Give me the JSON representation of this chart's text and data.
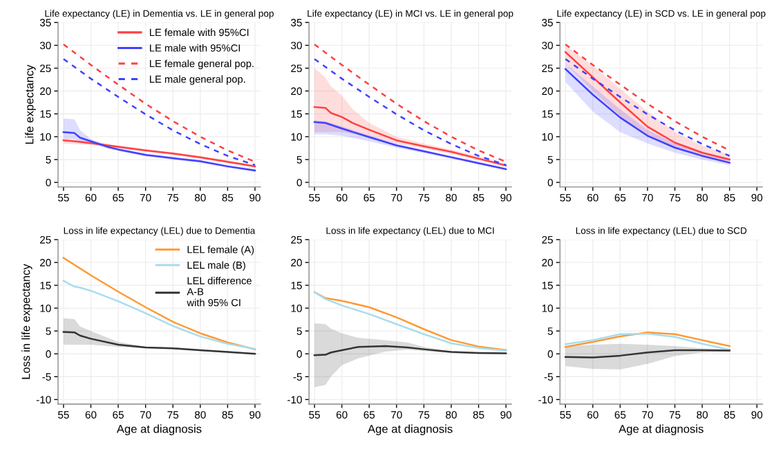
{
  "chart_data": [
    {
      "type": "line",
      "title": "Life expectancy (LE) in Dementia vs. LE in general pop",
      "ylabel": "Life expectancy",
      "xlim": [
        54,
        91
      ],
      "ylim": [
        -1,
        35
      ],
      "xticks": [
        55,
        60,
        65,
        70,
        75,
        80,
        85,
        90
      ],
      "yticks": [
        0,
        5,
        10,
        15,
        20,
        25,
        30,
        35
      ],
      "grid": true,
      "legend": "top right",
      "series": [
        {
          "name": "LE female with 95%CI",
          "color": "#ff4040",
          "line_style": "solid",
          "x": [
            55,
            57,
            60,
            65,
            70,
            75,
            80,
            85,
            90
          ],
          "values": [
            9.2,
            9.0,
            8.6,
            7.8,
            7.0,
            6.3,
            5.5,
            4.5,
            3.5
          ],
          "lower": [
            8.5,
            8.4,
            8.2,
            7.5,
            6.7,
            6.0,
            5.2,
            4.2,
            3.2
          ],
          "upper": [
            9.6,
            9.4,
            9.0,
            8.1,
            7.3,
            6.6,
            5.8,
            4.8,
            3.8
          ]
        },
        {
          "name": "LE male with 95%CI",
          "color": "#4040ff",
          "line_style": "solid",
          "x": [
            55,
            57,
            58,
            60,
            63,
            65,
            70,
            75,
            80,
            85,
            90
          ],
          "values": [
            11.0,
            10.8,
            9.8,
            9.0,
            7.8,
            7.2,
            6.0,
            5.3,
            4.6,
            3.5,
            2.6
          ],
          "lower": [
            9.5,
            9.5,
            9.0,
            8.5,
            7.4,
            6.9,
            5.7,
            5.0,
            4.3,
            3.2,
            2.3
          ],
          "upper": [
            14.0,
            13.8,
            11.5,
            9.5,
            8.2,
            7.6,
            6.3,
            5.6,
            4.9,
            3.8,
            2.9
          ]
        },
        {
          "name": "LE female general pop.",
          "color": "#ff4040",
          "line_style": "dashed",
          "x": [
            55,
            60,
            65,
            70,
            75,
            80,
            85,
            90
          ],
          "values": [
            30.2,
            25.7,
            21.4,
            17.2,
            13.4,
            10.0,
            7.0,
            4.5
          ]
        },
        {
          "name": "LE male general pop.",
          "color": "#4040ff",
          "line_style": "dashed",
          "x": [
            55,
            60,
            65,
            70,
            75,
            80,
            85,
            90
          ],
          "values": [
            27.0,
            22.7,
            18.7,
            14.9,
            11.4,
            8.4,
            5.8,
            3.8
          ]
        }
      ]
    },
    {
      "type": "line",
      "title": "Life expectancy (LE) in MCI vs. LE in general pop",
      "xlim": [
        54,
        91
      ],
      "ylim": [
        -1,
        35
      ],
      "xticks": [
        55,
        60,
        65,
        70,
        75,
        80,
        85,
        90
      ],
      "yticks": [
        0,
        5,
        10,
        15,
        20,
        25,
        30,
        35
      ],
      "grid": true,
      "series": [
        {
          "color": "#ff4040",
          "line_style": "solid",
          "x": [
            55,
            57,
            58,
            60,
            62,
            65,
            70,
            75,
            80,
            85,
            90
          ],
          "values": [
            16.5,
            16.3,
            15.2,
            14.3,
            13.0,
            11.5,
            9.2,
            7.9,
            6.7,
            5.2,
            3.7
          ],
          "lower": [
            11.0,
            11.0,
            11.0,
            11.0,
            10.6,
            10.0,
            8.5,
            7.4,
            6.2,
            4.8,
            3.4
          ],
          "upper": [
            25.0,
            23.0,
            21.0,
            19.0,
            16.0,
            13.0,
            10.0,
            8.5,
            7.2,
            5.7,
            4.0
          ]
        },
        {
          "color": "#4040ff",
          "line_style": "solid",
          "x": [
            55,
            57,
            60,
            65,
            70,
            75,
            80,
            85,
            90
          ],
          "values": [
            13.2,
            13.0,
            11.8,
            9.9,
            8.1,
            6.8,
            5.5,
            4.2,
            2.9
          ],
          "lower": [
            10.5,
            10.5,
            10.2,
            9.0,
            7.6,
            6.4,
            5.2,
            3.9,
            2.6
          ],
          "upper": [
            13.6,
            13.4,
            12.3,
            10.3,
            8.5,
            7.1,
            5.8,
            4.5,
            3.2
          ]
        },
        {
          "color": "#ff4040",
          "line_style": "dashed",
          "x": [
            55,
            60,
            65,
            70,
            75,
            80,
            85,
            90
          ],
          "values": [
            30.2,
            25.7,
            21.4,
            17.2,
            13.4,
            10.0,
            7.0,
            4.5
          ]
        },
        {
          "color": "#4040ff",
          "line_style": "dashed",
          "x": [
            55,
            60,
            65,
            70,
            75,
            80,
            85,
            90
          ],
          "values": [
            27.0,
            22.7,
            18.7,
            14.9,
            11.4,
            8.4,
            5.8,
            3.8
          ]
        }
      ]
    },
    {
      "type": "line",
      "title": "Life expectancy (LE) in SCD vs. LE in general pop",
      "xlim": [
        54,
        91
      ],
      "ylim": [
        -1,
        35
      ],
      "xticks": [
        55,
        60,
        65,
        70,
        75,
        80,
        85,
        90
      ],
      "yticks": [
        0,
        5,
        10,
        15,
        20,
        25,
        30,
        35
      ],
      "grid": true,
      "series": [
        {
          "color": "#ff4040",
          "line_style": "solid",
          "x": [
            55,
            60,
            65,
            70,
            75,
            80,
            85
          ],
          "values": [
            28.5,
            23.0,
            17.5,
            12.2,
            8.7,
            6.5,
            5.0
          ],
          "lower": [
            26.0,
            20.0,
            14.5,
            10.0,
            7.5,
            5.8,
            4.5
          ],
          "upper": [
            30.0,
            25.5,
            20.5,
            15.5,
            11.0,
            8.0,
            6.0
          ]
        },
        {
          "color": "#4040ff",
          "line_style": "solid",
          "x": [
            55,
            60,
            65,
            70,
            75,
            80,
            85
          ],
          "values": [
            24.8,
            19.2,
            14.2,
            10.2,
            7.6,
            5.8,
            4.3
          ],
          "lower": [
            22.0,
            15.5,
            11.0,
            8.5,
            6.5,
            5.0,
            3.8
          ],
          "upper": [
            26.0,
            21.0,
            16.0,
            11.5,
            8.5,
            6.5,
            4.8
          ]
        },
        {
          "color": "#ff4040",
          "line_style": "dashed",
          "x": [
            55,
            60,
            65,
            70,
            75,
            80,
            85
          ],
          "values": [
            30.2,
            25.7,
            21.4,
            17.2,
            13.4,
            10.0,
            7.0
          ]
        },
        {
          "color": "#4040ff",
          "line_style": "dashed",
          "x": [
            55,
            60,
            65,
            70,
            75,
            80,
            85
          ],
          "values": [
            27.0,
            22.7,
            18.7,
            14.9,
            11.4,
            8.4,
            5.8
          ]
        }
      ]
    },
    {
      "type": "line",
      "title": "Loss in life expectancy (LEL) due to Dementia",
      "xlabel": "Age at diagnosis",
      "ylabel": "Loss in life expectancy",
      "xlim": [
        54,
        91
      ],
      "ylim": [
        -11,
        25
      ],
      "xticks": [
        55,
        60,
        65,
        70,
        75,
        80,
        85,
        90
      ],
      "yticks": [
        -10,
        -5,
        0,
        5,
        10,
        15,
        20,
        25
      ],
      "grid": true,
      "legend": "top right",
      "series": [
        {
          "name": "LEL female (A)",
          "color": "#ff9933",
          "line_style": "solid",
          "x": [
            55,
            60,
            65,
            70,
            75,
            80,
            85,
            90
          ],
          "values": [
            21.0,
            17.2,
            13.6,
            10.2,
            7.0,
            4.5,
            2.5,
            1.0
          ]
        },
        {
          "name": "LEL male (B)",
          "color": "#a8dcee",
          "line_style": "solid",
          "x": [
            55,
            57,
            58,
            60,
            65,
            70,
            75,
            80,
            85,
            90
          ],
          "values": [
            16.0,
            14.7,
            14.5,
            13.8,
            11.5,
            8.9,
            6.1,
            3.8,
            2.2,
            1.1
          ]
        },
        {
          "name": "LEL difference\nA-B\nwith 95% CI",
          "color": "#333333",
          "line_style": "solid",
          "x": [
            55,
            57,
            58,
            60,
            65,
            70,
            75,
            80,
            85,
            90
          ],
          "values": [
            4.8,
            4.7,
            4.0,
            3.3,
            2.0,
            1.4,
            1.2,
            0.8,
            0.4,
            0.0
          ],
          "lower": [
            2.0,
            2.0,
            2.0,
            2.0,
            1.5,
            1.2,
            1.0,
            0.6,
            0.2,
            0.0
          ],
          "upper": [
            7.8,
            7.6,
            6.0,
            5.0,
            2.6,
            1.6,
            1.4,
            1.0,
            0.6,
            0.1
          ]
        }
      ]
    },
    {
      "type": "line",
      "title": "Loss in life expectancy (LEL) due to MCI",
      "xlabel": "Age at diagnosis",
      "xlim": [
        54,
        91
      ],
      "ylim": [
        -11,
        25
      ],
      "xticks": [
        55,
        60,
        65,
        70,
        75,
        80,
        85,
        90
      ],
      "yticks": [
        -10,
        -5,
        0,
        5,
        10,
        15,
        20,
        25
      ],
      "grid": true,
      "series": [
        {
          "color": "#ff9933",
          "line_style": "solid",
          "x": [
            55,
            57,
            60,
            65,
            70,
            75,
            80,
            85,
            90
          ],
          "values": [
            13.5,
            12.2,
            11.6,
            10.2,
            8.0,
            5.4,
            3.0,
            1.6,
            0.8
          ]
        },
        {
          "color": "#a8dcee",
          "line_style": "solid",
          "x": [
            55,
            57,
            60,
            65,
            70,
            75,
            80,
            85,
            90
          ],
          "values": [
            13.5,
            12.0,
            10.6,
            8.7,
            6.5,
            4.3,
            2.3,
            1.3,
            0.7
          ]
        },
        {
          "color": "#333333",
          "line_style": "solid",
          "x": [
            55,
            57,
            58,
            60,
            63,
            68,
            72,
            75,
            80,
            85,
            90
          ],
          "values": [
            -0.3,
            -0.2,
            0.3,
            0.8,
            1.5,
            1.7,
            1.4,
            1.0,
            0.4,
            0.2,
            0.1
          ],
          "lower": [
            -7.3,
            -6.8,
            -5.0,
            -2.5,
            -1.0,
            0.5,
            0.9,
            0.6,
            0.2,
            0.0,
            0.0
          ],
          "upper": [
            6.7,
            6.5,
            5.5,
            4.5,
            3.5,
            3.0,
            2.5,
            1.5,
            0.6,
            0.3,
            0.2
          ]
        }
      ]
    },
    {
      "type": "line",
      "title": "Loss in life expectancy (LEL) due to SCD",
      "xlabel": "Age at diagnosis",
      "xlim": [
        54,
        91
      ],
      "ylim": [
        -11,
        25
      ],
      "xticks": [
        55,
        60,
        65,
        70,
        75,
        80,
        85,
        90
      ],
      "yticks": [
        -10,
        -5,
        0,
        5,
        10,
        15,
        20,
        25
      ],
      "grid": true,
      "series": [
        {
          "color": "#ff9933",
          "line_style": "solid",
          "x": [
            55,
            60,
            65,
            70,
            75,
            80,
            85
          ],
          "values": [
            1.5,
            2.6,
            3.8,
            4.7,
            4.3,
            3.0,
            1.7
          ]
        },
        {
          "color": "#a8dcee",
          "line_style": "solid",
          "x": [
            55,
            60,
            65,
            70,
            75,
            80,
            85
          ],
          "values": [
            2.1,
            3.0,
            4.3,
            4.4,
            3.7,
            2.2,
            0.9
          ]
        },
        {
          "color": "#333333",
          "line_style": "solid",
          "x": [
            55,
            60,
            65,
            70,
            75,
            80,
            85
          ],
          "values": [
            -0.7,
            -0.8,
            -0.4,
            0.3,
            0.8,
            0.8,
            0.7
          ],
          "lower": [
            -2.7,
            -3.3,
            -3.4,
            -2.2,
            -0.5,
            0.3,
            0.5
          ],
          "upper": [
            1.6,
            2.0,
            2.2,
            2.0,
            1.7,
            1.2,
            1.0
          ]
        }
      ]
    }
  ]
}
